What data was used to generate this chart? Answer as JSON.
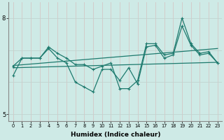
{
  "xlabel": "Humidex (Indice chaleur)",
  "background_color": "#ceeae6",
  "line_color": "#1e7a6e",
  "grid_color_v": "#e8c0c0",
  "grid_color_h": "#b8d8d4",
  "xlim": [
    -0.5,
    23.5
  ],
  "ylim": [
    4.8,
    8.5
  ],
  "ytick_vals": [
    5,
    8
  ],
  "ytick_labels": [
    "5",
    "8"
  ],
  "smooth_line1": {
    "x": [
      0,
      23
    ],
    "y": [
      6.52,
      7.05
    ]
  },
  "smooth_line2": {
    "x": [
      0,
      23
    ],
    "y": [
      6.45,
      6.62
    ]
  },
  "jagged_line1_x": [
    0,
    1,
    2,
    3,
    4,
    5,
    6,
    7,
    8,
    9,
    10,
    11,
    12,
    13,
    14,
    15,
    16,
    17,
    18,
    19,
    20,
    21,
    22,
    23
  ],
  "jagged_line1_y": [
    6.5,
    6.75,
    6.75,
    6.75,
    7.1,
    6.9,
    6.75,
    6.55,
    6.55,
    6.4,
    6.5,
    6.6,
    5.8,
    5.8,
    6.05,
    7.2,
    7.2,
    6.85,
    6.9,
    8.0,
    7.2,
    6.9,
    6.95,
    6.6
  ],
  "jagged_line2_x": [
    0,
    1,
    2,
    3,
    4,
    5,
    6,
    7,
    8,
    9,
    10,
    11,
    12,
    13,
    14,
    15,
    16,
    17,
    18,
    19,
    20,
    21,
    22,
    23
  ],
  "jagged_line2_y": [
    6.2,
    6.75,
    6.75,
    6.75,
    7.05,
    6.75,
    6.6,
    6.0,
    5.85,
    5.7,
    6.4,
    6.4,
    6.05,
    6.45,
    5.95,
    7.1,
    7.15,
    6.75,
    6.85,
    7.75,
    7.15,
    6.85,
    6.9,
    6.6
  ]
}
